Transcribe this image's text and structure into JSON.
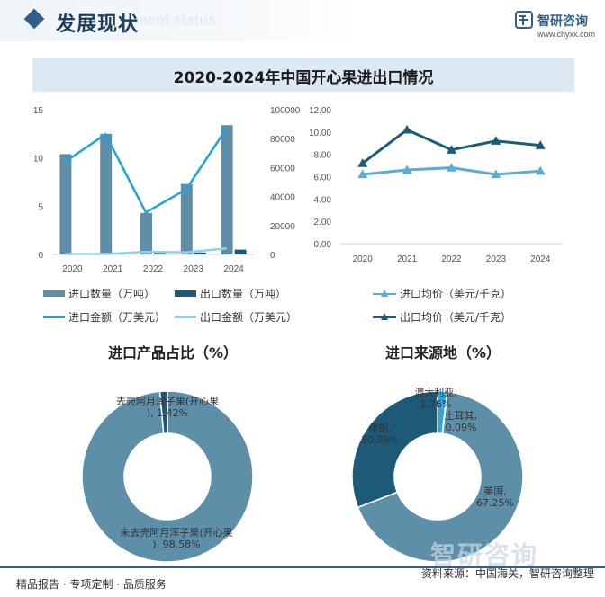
{
  "header": {
    "title": "发展现状",
    "subtitle": "ment status",
    "brand": "智研咨询",
    "url": "www.chyxx.com"
  },
  "main_title": "2020-2024年中国开心果进出口情况",
  "colors": {
    "import_qty": "#5f8ea8",
    "export_qty": "#1a5a78",
    "import_amt": "#1ba4de",
    "export_amt": "#8fd0ee",
    "import_price": "#5aaed6",
    "export_price": "#1b5c78",
    "donut_main": "#5e8fa8",
    "donut_minor": "#1d5a78",
    "donut_accent": "#2ba8df"
  },
  "chart_data": [
    {
      "type": "bar",
      "categories": [
        "2020",
        "2021",
        "2022",
        "2023",
        "2024"
      ],
      "series": [
        {
          "name": "进口数量（万吨）",
          "type": "bar",
          "axis": "left",
          "values": [
            10.4,
            12.5,
            4.3,
            7.3,
            13.4
          ]
        },
        {
          "name": "出口数量（万吨）",
          "type": "bar",
          "axis": "left",
          "values": [
            0.05,
            0.05,
            0.3,
            0.2,
            0.5
          ]
        },
        {
          "name": "进口金额（万美元）",
          "type": "line",
          "axis": "right",
          "values": [
            64000,
            83000,
            29000,
            45000,
            87000
          ]
        },
        {
          "name": "出口金额（万美元）",
          "type": "line",
          "axis": "right",
          "values": [
            300,
            300,
            1800,
            1500,
            4200
          ]
        }
      ],
      "ylim": [
        0,
        15
      ],
      "yticks": [
        "0",
        "5",
        "10",
        "15"
      ],
      "y2lim": [
        0,
        100000
      ],
      "y2ticks": [
        "0",
        "20000",
        "40000",
        "60000",
        "80000",
        "100000"
      ]
    },
    {
      "type": "line",
      "categories": [
        "2020",
        "2021",
        "2022",
        "2023",
        "2024"
      ],
      "series": [
        {
          "name": "进口均价（美元/千克）",
          "values": [
            6.2,
            6.6,
            6.8,
            6.2,
            6.5
          ]
        },
        {
          "name": "出口均价（美元/千克）",
          "values": [
            7.2,
            10.2,
            8.4,
            9.2,
            8.8
          ]
        }
      ],
      "ylim": [
        0,
        12
      ],
      "yticks": [
        "0.00",
        "2.00",
        "4.00",
        "6.00",
        "8.00",
        "10.00",
        "12.00"
      ]
    },
    {
      "type": "pie",
      "title": "进口产品占比（%）",
      "slices": [
        {
          "label": "未去壳阿月浑子果(开心果)",
          "value": 98.58,
          "display": "98.58%"
        },
        {
          "label": "去壳阿月浑子果(开心果)",
          "value": 1.42,
          "display": "1.42%"
        }
      ]
    },
    {
      "type": "pie",
      "title": "进口来源地（%）",
      "slices": [
        {
          "label": "美国",
          "value": 67.25,
          "display": "67.25%"
        },
        {
          "label": "伊朗",
          "value": 30.89,
          "display": "30.89%"
        },
        {
          "label": "澳大利亚",
          "value": 1.76,
          "display": "1.76%"
        },
        {
          "label": "土耳其",
          "value": 0.09,
          "display": "0.09%"
        }
      ]
    }
  ],
  "footer": {
    "left": "精品报告 · 专项定制 · 品质服务",
    "right": "资料来源：中国海关，智研咨询整理",
    "watermark": "智研咨询"
  }
}
